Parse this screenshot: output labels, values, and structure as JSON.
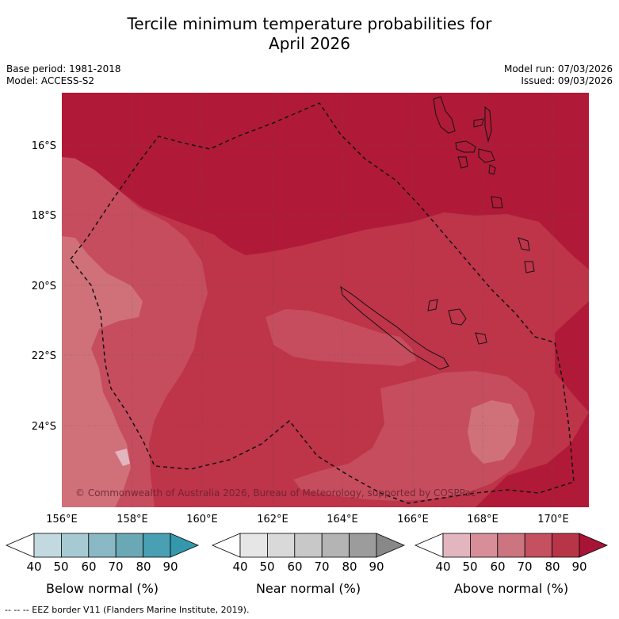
{
  "title_line1": "Tercile minimum temperature probabilities for",
  "title_line2": "April 2026",
  "base_period": "Base period: 1981-2018",
  "model": "Model: ACCESS-S2",
  "model_run": "Model run: 07/03/2026",
  "issued": "Issued: 09/03/2026",
  "copyright": "© Commonwealth of Australia 2026, Bureau of Meteorology, supported by COSPPac",
  "lon_labels": [
    "156°E",
    "158°E",
    "160°E",
    "162°E",
    "164°E",
    "166°E",
    "168°E",
    "170°E"
  ],
  "lat_labels": [
    "16°S",
    "18°S",
    "20°S",
    "22°S",
    "24°S"
  ],
  "colorbars": [
    {
      "label": "Below normal (%)",
      "ticks": [
        "40",
        "50",
        "60",
        "70",
        "80",
        "90"
      ],
      "colors": [
        "#ffffff",
        "#c2d9e0",
        "#a6cad2",
        "#8ab8c4",
        "#6aa8b6",
        "#48a0b2",
        "#3498ac"
      ]
    },
    {
      "label": "Near normal (%)",
      "ticks": [
        "40",
        "50",
        "60",
        "70",
        "80",
        "90"
      ],
      "colors": [
        "#ffffff",
        "#e6e6e6",
        "#d9d9d9",
        "#c8c8c8",
        "#b4b4b4",
        "#9c9c9c",
        "#888888"
      ]
    },
    {
      "label": "Above normal (%)",
      "ticks": [
        "40",
        "50",
        "60",
        "70",
        "80",
        "90"
      ],
      "colors": [
        "#ffffff",
        "#e2b5bf",
        "#d88e98",
        "#cc7480",
        "#c45060",
        "#b83548",
        "#a81435"
      ]
    }
  ],
  "footnote": "--  --  -- EEZ border V11 (Flanders Marine Institute, 2019).",
  "colors": {
    "above_90": "#b01a38",
    "above_80": "#be3449",
    "above_70": "#c64d5e",
    "above_60": "#d07179"
  }
}
